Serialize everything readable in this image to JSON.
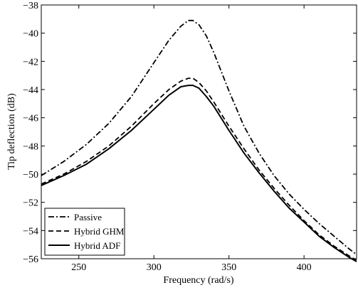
{
  "chart_data": {
    "type": "line",
    "title": "",
    "xlabel": "Frequency (rad/s)",
    "ylabel": "Tip deflection (dB)",
    "xlim": [
      225,
      435
    ],
    "ylim": [
      -56,
      -38
    ],
    "xticks": [
      250,
      300,
      350,
      400
    ],
    "yticks": [
      -56,
      -54,
      -52,
      -50,
      -48,
      -46,
      -44,
      -42,
      -40,
      -38
    ],
    "xtick_labels": [
      "250",
      "300",
      "350",
      "400"
    ],
    "ytick_labels": [
      "−56",
      "−54",
      "−52",
      "−50",
      "−48",
      "−46",
      "−44",
      "−42",
      "−40",
      "−38"
    ],
    "grid": false,
    "legend_position": "bottom-left",
    "series": [
      {
        "name": "Passive",
        "style": "dashdot",
        "color": "#000000",
        "x": [
          225,
          240,
          255,
          270,
          285,
          300,
          310,
          318,
          323,
          326,
          330,
          335,
          340,
          350,
          360,
          370,
          380,
          390,
          400,
          410,
          420,
          430,
          435
        ],
        "y": [
          -50.1,
          -49.1,
          -47.9,
          -46.4,
          -44.5,
          -42.1,
          -40.5,
          -39.5,
          -39.1,
          -39.1,
          -39.4,
          -40.2,
          -41.4,
          -44.1,
          -46.6,
          -48.5,
          -50.1,
          -51.4,
          -52.5,
          -53.5,
          -54.4,
          -55.3,
          -55.7
        ]
      },
      {
        "name": "Hybrid GHM",
        "style": "dashed",
        "color": "#000000",
        "x": [
          225,
          240,
          255,
          270,
          285,
          300,
          310,
          318,
          323,
          326,
          330,
          335,
          340,
          350,
          360,
          370,
          380,
          390,
          400,
          410,
          420,
          430,
          435
        ],
        "y": [
          -50.7,
          -50.0,
          -49.1,
          -48.0,
          -46.6,
          -45.0,
          -44.0,
          -43.4,
          -43.2,
          -43.2,
          -43.5,
          -44.1,
          -44.9,
          -46.6,
          -48.2,
          -49.7,
          -51.0,
          -52.2,
          -53.3,
          -54.3,
          -55.1,
          -55.8,
          -56.1
        ]
      },
      {
        "name": "Hybrid ADF",
        "style": "solid",
        "color": "#000000",
        "x": [
          225,
          240,
          255,
          270,
          285,
          300,
          310,
          318,
          323,
          326,
          330,
          335,
          340,
          350,
          360,
          370,
          380,
          390,
          400,
          410,
          420,
          430,
          435
        ],
        "y": [
          -50.8,
          -50.1,
          -49.3,
          -48.2,
          -46.9,
          -45.4,
          -44.4,
          -43.8,
          -43.7,
          -43.7,
          -43.9,
          -44.5,
          -45.2,
          -46.9,
          -48.5,
          -49.9,
          -51.2,
          -52.4,
          -53.4,
          -54.4,
          -55.2,
          -55.9,
          -56.2
        ]
      }
    ]
  }
}
